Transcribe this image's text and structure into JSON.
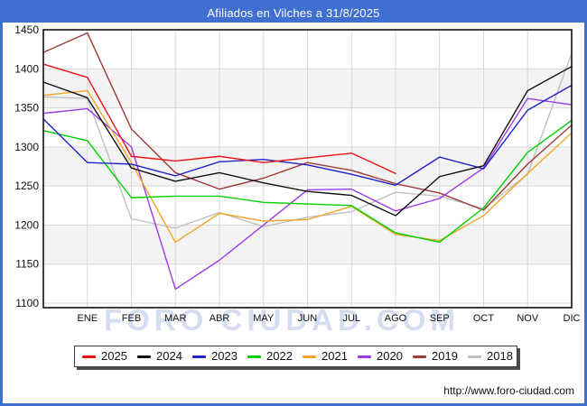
{
  "title": "Afiliados en Vilches a 31/8/2025",
  "watermark": "FORO CIUDAD.COM",
  "footer_url": "http://www.foro-ciudad.com",
  "frame_color": "#3e6fd1",
  "chart_data": {
    "type": "line",
    "title": "Afiliados en Vilches a 31/8/2025",
    "xlabel": "",
    "ylabel": "",
    "ylim": [
      1100,
      1450
    ],
    "y_ticks": [
      "1450",
      "1400",
      "1350",
      "1300",
      "1250",
      "1200",
      "1150",
      "1100"
    ],
    "x_tick_labels": [
      "ENE",
      "FEB",
      "MAR",
      "ABR",
      "MAY",
      "JUN",
      "JUL",
      "AGO",
      "SEP",
      "OCT",
      "NOV",
      "DIC"
    ],
    "x_index_of_first_label": 1,
    "grid": true,
    "band_color": "#f3f3f3",
    "grid_color": "#d8d8d8",
    "legend_position": "bottom",
    "series": [
      {
        "name": "2025",
        "color": "#ee1111",
        "values": [
          1406,
          1389,
          1288,
          1282,
          1288,
          1280,
          1286,
          1292,
          1266
        ]
      },
      {
        "name": "2024",
        "color": "#111111",
        "values": [
          1383,
          1363,
          1273,
          1256,
          1267,
          1254,
          1243,
          1238,
          1212,
          1262,
          1276,
          1372,
          1403
        ]
      },
      {
        "name": "2023",
        "color": "#2222cc",
        "values": [
          1336,
          1280,
          1278,
          1263,
          1281,
          1284,
          1277,
          1265,
          1251,
          1287,
          1272,
          1347,
          1379
        ]
      },
      {
        "name": "2022",
        "color": "#00d000",
        "values": [
          1321,
          1308,
          1235,
          1237,
          1237,
          1229,
          1227,
          1225,
          1190,
          1178,
          1222,
          1293,
          1334
        ]
      },
      {
        "name": "2021",
        "color": "#f4a428",
        "values": [
          1366,
          1372,
          1280,
          1178,
          1215,
          1205,
          1207,
          1224,
          1188,
          1180,
          1212,
          1266,
          1318
        ]
      },
      {
        "name": "2020",
        "color": "#9d3be8",
        "values": [
          1343,
          1349,
          1300,
          1118,
          1155,
          1200,
          1245,
          1246,
          1218,
          1234,
          1273,
          1362,
          1354
        ]
      },
      {
        "name": "2019",
        "color": "#9e3a38",
        "values": [
          1421,
          1446,
          1323,
          1267,
          1246,
          1260,
          1280,
          1270,
          1253,
          1241,
          1219,
          1278,
          1328
        ]
      },
      {
        "name": "2018",
        "color": "#c0c0c0",
        "values": [
          1364,
          1362,
          1208,
          1196,
          1216,
          1198,
          1210,
          1217,
          1242,
          1237,
          1221,
          1265,
          1420
        ]
      }
    ]
  }
}
